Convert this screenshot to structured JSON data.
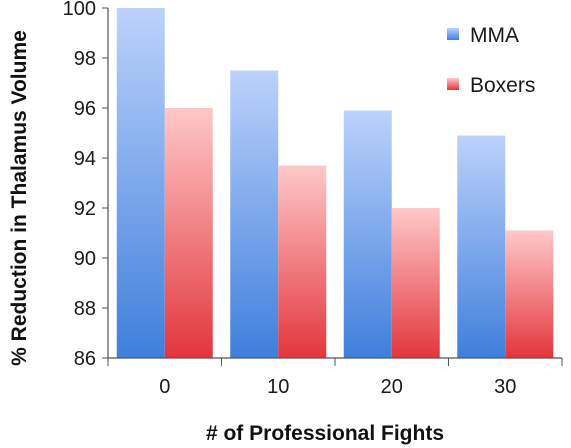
{
  "chart_data": {
    "type": "bar",
    "title": "",
    "xlabel": "# of Professional Fights",
    "ylabel": "% Reduction in Thalamus Volume",
    "categories": [
      "0",
      "10",
      "20",
      "30"
    ],
    "series": [
      {
        "name": "MMA",
        "values": [
          100,
          97.5,
          95.9,
          94.9
        ],
        "color": "#4a86e0"
      },
      {
        "name": "Boxers",
        "values": [
          96,
          93.7,
          92,
          91.1
        ],
        "color": "#e8474c"
      }
    ],
    "ylim": [
      86,
      100
    ],
    "yticks": [
      "86",
      "88",
      "90",
      "92",
      "94",
      "96",
      "98",
      "100"
    ],
    "grid": false,
    "legend": "top-right"
  }
}
